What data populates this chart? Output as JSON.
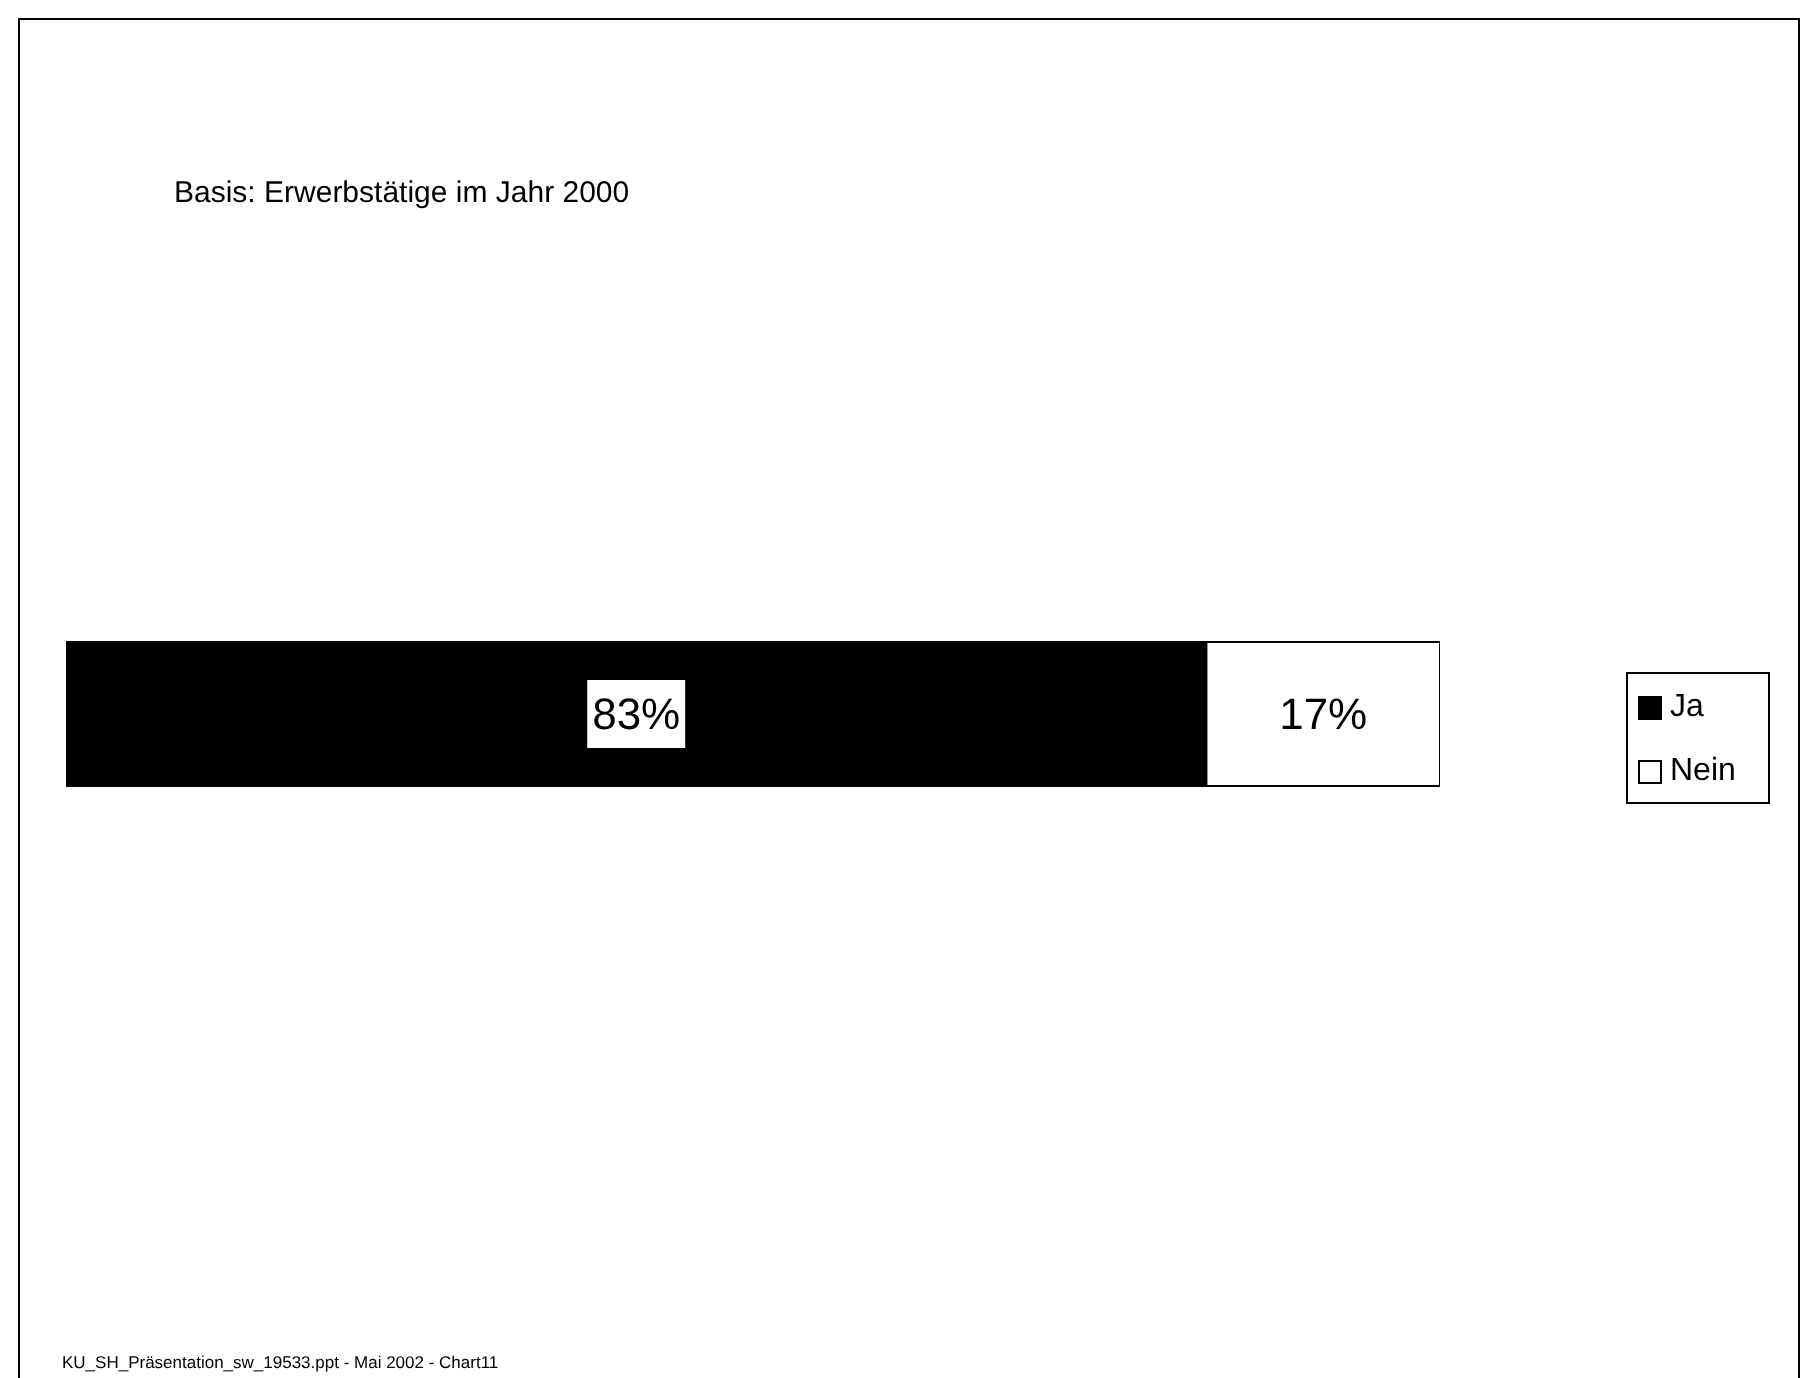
{
  "chart_data": {
    "type": "bar",
    "orientation": "horizontal",
    "stacked": true,
    "title": "Basis: Erwerbstätige im Jahr 2000",
    "categories": [
      null
    ],
    "xlim": [
      0,
      100
    ],
    "tick_labels": false,
    "legend": "right",
    "series": [
      {
        "name": "Ja",
        "color": "#000000",
        "values": [
          83
        ],
        "value_labels": [
          "83%"
        ]
      },
      {
        "name": "Nein",
        "color": "#ffffff",
        "values": [
          17
        ],
        "value_labels": [
          "17%"
        ]
      }
    ],
    "annotations": [
      "KU_SH_Präsentation_sw_19533.ppt - Mai 2002 - Chart11"
    ]
  }
}
